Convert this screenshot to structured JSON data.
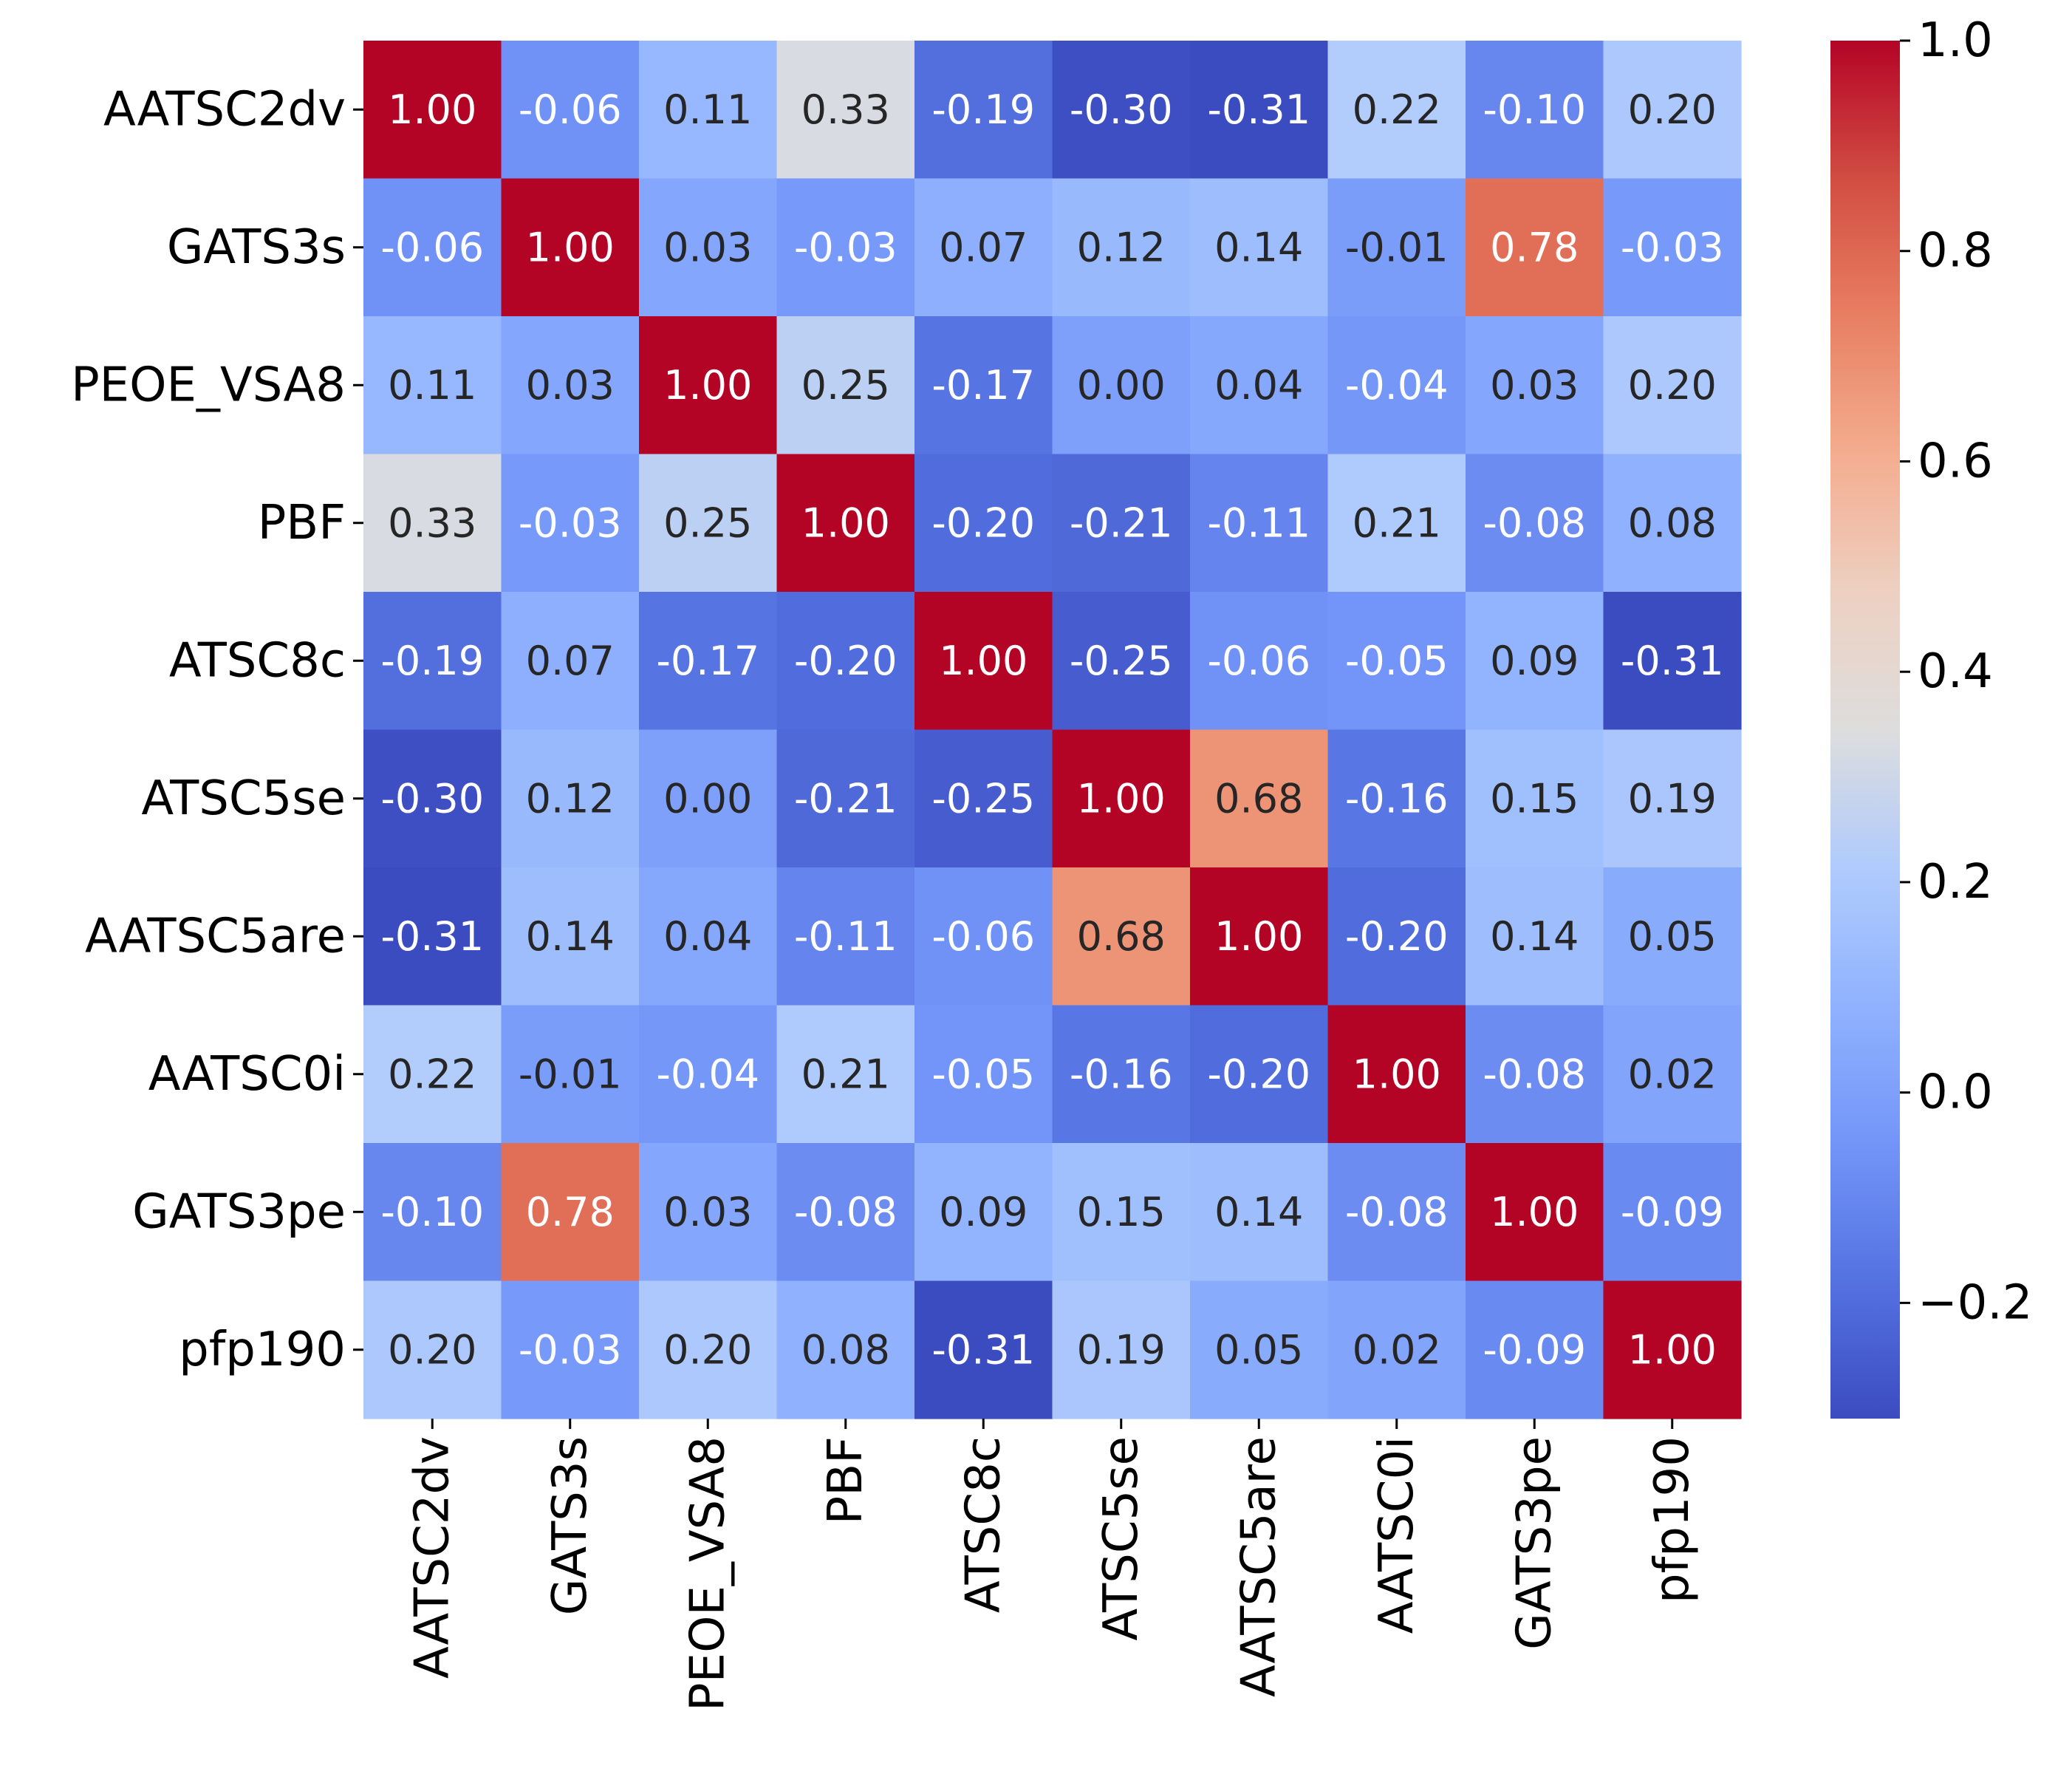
{
  "chart_data": {
    "type": "heatmap",
    "title": "",
    "xlabel": "",
    "ylabel": "",
    "labels": [
      "AATSC2dv",
      "GATS3s",
      "PEOE_VSA8",
      "PBF",
      "ATSC8c",
      "ATSC5se",
      "AATSC5are",
      "AATSC0i",
      "GATS3pe",
      "pfp190"
    ],
    "matrix": [
      [
        1.0,
        -0.06,
        0.11,
        0.33,
        -0.19,
        -0.3,
        -0.31,
        0.22,
        -0.1,
        0.2
      ],
      [
        -0.06,
        1.0,
        0.03,
        -0.03,
        0.07,
        0.12,
        0.14,
        -0.01,
        0.78,
        -0.03
      ],
      [
        0.11,
        0.03,
        1.0,
        0.25,
        -0.17,
        -0.0,
        0.04,
        -0.04,
        0.03,
        0.2
      ],
      [
        0.33,
        -0.03,
        0.25,
        1.0,
        -0.2,
        -0.21,
        -0.11,
        0.21,
        -0.08,
        0.08
      ],
      [
        -0.19,
        0.07,
        -0.17,
        -0.2,
        1.0,
        -0.25,
        -0.06,
        -0.05,
        0.09,
        -0.31
      ],
      [
        -0.3,
        0.12,
        -0.0,
        -0.21,
        -0.25,
        1.0,
        0.68,
        -0.16,
        0.15,
        0.19
      ],
      [
        -0.31,
        0.14,
        0.04,
        -0.11,
        -0.06,
        0.68,
        1.0,
        -0.2,
        0.14,
        0.05
      ],
      [
        0.22,
        -0.01,
        -0.04,
        0.21,
        -0.05,
        -0.16,
        -0.2,
        1.0,
        -0.08,
        0.02
      ],
      [
        -0.1,
        0.78,
        0.03,
        -0.08,
        0.09,
        0.15,
        0.14,
        -0.08,
        1.0,
        -0.09
      ],
      [
        0.2,
        -0.03,
        0.2,
        0.08,
        -0.31,
        0.19,
        0.05,
        0.02,
        -0.09,
        1.0
      ]
    ],
    "annotation_format": "%.2f",
    "colormap": "coolwarm",
    "vmin": -0.31,
    "vmax": 1.0,
    "colorbar_ticks": [
      -0.2,
      0.0,
      0.2,
      0.4,
      0.6,
      0.8,
      1.0
    ],
    "colorbar_tick_labels": [
      "−0.2",
      "0.0",
      "0.2",
      "0.4",
      "0.6",
      "0.8",
      "1.0"
    ]
  }
}
